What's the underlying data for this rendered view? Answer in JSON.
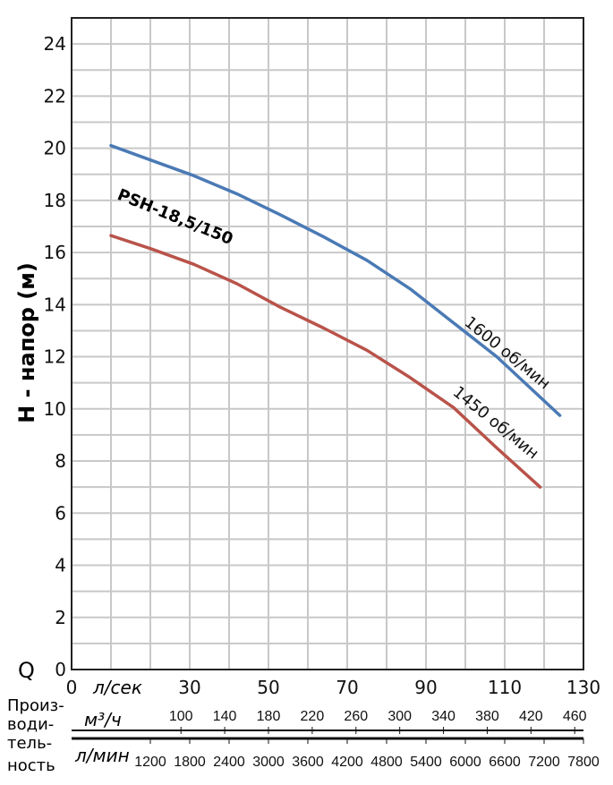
{
  "chart_data": {
    "type": "line",
    "ylabel": "Н - напор (м)",
    "xlabel_symbol": "Q",
    "ylim": [
      0,
      25
    ],
    "yticks": [
      0,
      2,
      4,
      6,
      8,
      10,
      12,
      14,
      16,
      18,
      20,
      22,
      24
    ],
    "xlim": [
      0,
      130
    ],
    "xticks_lsec": [
      0,
      30,
      50,
      70,
      90,
      110,
      130
    ],
    "x_unit_lsec": "л/сек",
    "flow_label": [
      "Произ-",
      "води-",
      "тель-",
      "ность"
    ],
    "m3h_axis": {
      "unit": "м³/ч",
      "values": [
        100,
        140,
        180,
        220,
        260,
        300,
        340,
        380,
        420,
        460
      ]
    },
    "lmin_axis": {
      "unit": "л/мин",
      "values": [
        1200,
        1800,
        2400,
        3000,
        3600,
        4200,
        4800,
        5400,
        6000,
        6600,
        7200,
        7800
      ]
    },
    "model_label": "PSH-18,5/150",
    "series": [
      {
        "name": "1600 об/мин",
        "color": "#4a7ab5",
        "x": [
          10,
          20,
          31,
          42,
          53,
          64,
          75,
          86,
          97,
          108,
          124
        ],
        "y": [
          20.1,
          19.55,
          18.95,
          18.25,
          17.45,
          16.6,
          15.7,
          14.6,
          13.3,
          12.0,
          9.75
        ]
      },
      {
        "name": "1450 об/мин",
        "color": "#b9534a",
        "x": [
          10,
          20,
          31,
          42,
          53,
          64,
          75,
          86,
          97,
          108,
          119
        ],
        "y": [
          16.65,
          16.15,
          15.55,
          14.8,
          13.9,
          13.1,
          12.25,
          11.2,
          10.05,
          8.5,
          7.0
        ]
      }
    ]
  }
}
